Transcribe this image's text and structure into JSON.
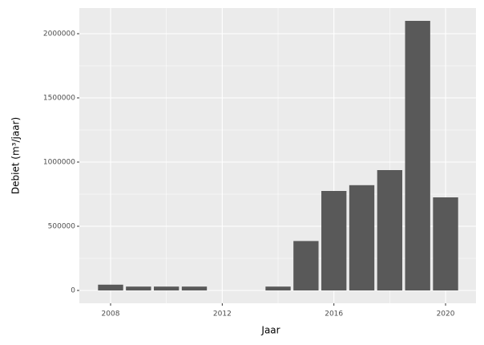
{
  "chart_data": {
    "type": "bar",
    "xlabel": "Jaar",
    "ylabel": "Debiet (m³/jaar)",
    "x": [
      2008,
      2009,
      2010,
      2011,
      2014,
      2015,
      2016,
      2017,
      2018,
      2019,
      2020
    ],
    "values": [
      45000,
      30000,
      30000,
      30000,
      30000,
      385000,
      775000,
      820000,
      937500,
      2100000,
      725000
    ],
    "color": "#595959",
    "xlim": [
      2006.88,
      2021.09
    ],
    "xticks": [
      2008,
      2012,
      2016,
      2020
    ],
    "ylim": [
      -100000,
      2200000
    ],
    "yticks": [
      0,
      500000,
      1000000,
      1500000,
      2000000
    ],
    "grid": true
  }
}
